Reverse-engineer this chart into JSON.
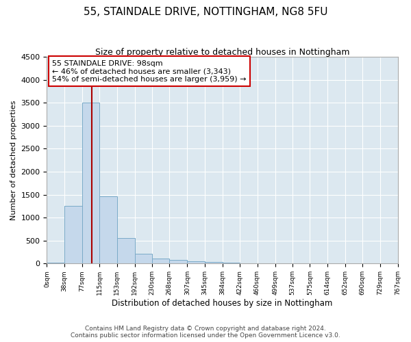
{
  "title_line1": "55, STAINDALE DRIVE, NOTTINGHAM, NG8 5FU",
  "title_line2": "Size of property relative to detached houses in Nottingham",
  "xlabel": "Distribution of detached houses by size in Nottingham",
  "ylabel": "Number of detached properties",
  "annotation_title": "55 STAINDALE DRIVE: 98sqm",
  "annotation_line1": "← 46% of detached houses are smaller (3,343)",
  "annotation_line2": "54% of semi-detached houses are larger (3,959) →",
  "bar_color": "#c5d8eb",
  "bar_edge_color": "#7aaac8",
  "vline_color": "#aa0000",
  "vline_x": 2,
  "bin_edges": [
    0,
    38,
    77,
    115,
    153,
    192,
    230,
    268,
    307,
    345,
    384,
    422,
    460,
    499,
    537,
    575,
    614,
    652,
    690,
    729,
    767
  ],
  "bar_values": [
    20,
    1250,
    3500,
    1460,
    560,
    210,
    110,
    75,
    50,
    35,
    20,
    0,
    5,
    0,
    0,
    0,
    0,
    0,
    0,
    0
  ],
  "ylim": [
    0,
    4500
  ],
  "yticks": [
    0,
    500,
    1000,
    1500,
    2000,
    2500,
    3000,
    3500,
    4000,
    4500
  ],
  "footnote_line1": "Contains HM Land Registry data © Crown copyright and database right 2024.",
  "footnote_line2": "Contains public sector information licensed under the Open Government Licence v3.0.",
  "background_color": "#ffffff",
  "plot_bg_color": "#dce8f0",
  "grid_color": "#ffffff",
  "title_fontsize": 11,
  "subtitle_fontsize": 9,
  "annotation_box_color": "#ffffff",
  "annotation_box_edge": "#cc0000",
  "annotation_fontsize": 8
}
